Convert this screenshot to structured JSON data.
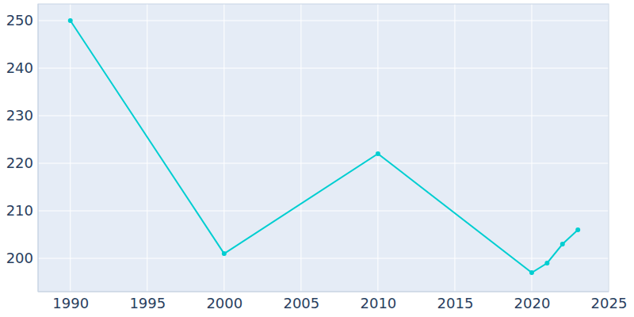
{
  "chart_data": {
    "type": "line",
    "x": [
      1990,
      2000,
      2010,
      2020,
      2021,
      2022,
      2023
    ],
    "values": [
      250,
      201,
      222,
      197,
      199,
      203,
      206
    ],
    "color": "#00ced1",
    "marker": "circle",
    "xlim": [
      1987.9,
      2025
    ],
    "xticks": [
      1990,
      1995,
      2000,
      2005,
      2010,
      2015,
      2020,
      2025
    ],
    "ylim": [
      193,
      253.5
    ],
    "yticks": [
      200,
      210,
      220,
      230,
      240,
      250
    ],
    "grid": true
  }
}
